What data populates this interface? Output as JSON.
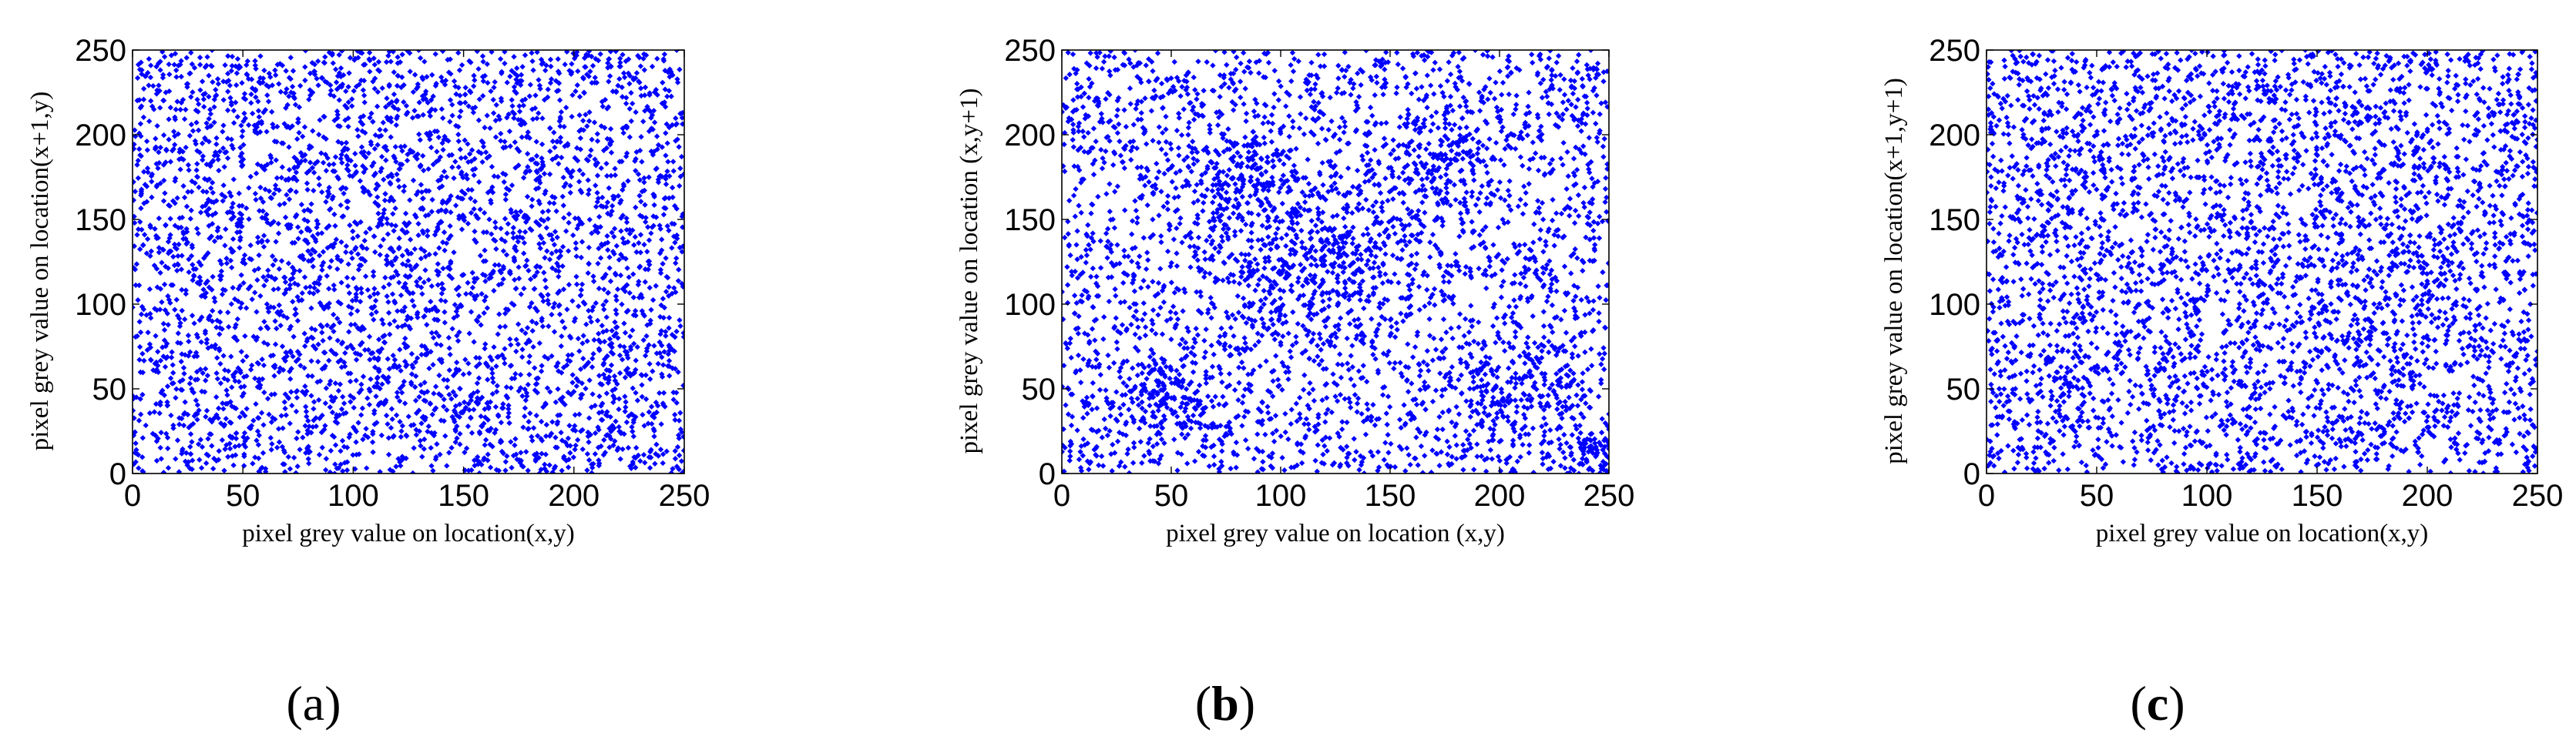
{
  "chart_data": [
    {
      "type": "scatter",
      "panel_label": "a",
      "panel_label_bold": false,
      "xlabel": "pixel grey value on location(x,y)",
      "ylabel": "pixel grey value on location(x+1,y)",
      "xlim": [
        0,
        250
      ],
      "ylim": [
        0,
        250
      ],
      "xticks": [
        "0",
        "50",
        "100",
        "150",
        "200",
        "250"
      ],
      "yticks": [
        "0",
        "50",
        "100",
        "150",
        "200",
        "250"
      ],
      "grid": false,
      "marker_color": "#0000ff",
      "point_count": 4000,
      "distribution": "uniform random over [0,250] x [0,250] (correlation near zero)",
      "seed": 11,
      "clusters": []
    },
    {
      "type": "scatter",
      "panel_label": "b",
      "panel_label_bold": true,
      "xlabel": "pixel grey value on location (x,y)",
      "ylabel": "pixel grey value on location (x,y+1)",
      "xlim": [
        0,
        250
      ],
      "ylim": [
        0,
        250
      ],
      "xticks": [
        "0",
        "50",
        "100",
        "150",
        "200",
        "250"
      ],
      "yticks": [
        "0",
        "50",
        "100",
        "150",
        "200",
        "250"
      ],
      "grid": false,
      "marker_color": "#0000ff",
      "point_count": 4000,
      "distribution": "mostly uniform random with denser clusters (correlation near zero)",
      "seed": 23,
      "clusters": [
        {
          "x": 115,
          "y": 125,
          "spread": 22,
          "n": 320
        },
        {
          "x": 50,
          "y": 45,
          "spread": 12,
          "n": 150
        },
        {
          "x": 80,
          "y": 175,
          "spread": 13,
          "n": 150
        },
        {
          "x": 175,
          "y": 185,
          "spread": 15,
          "n": 140
        },
        {
          "x": 210,
          "y": 50,
          "spread": 15,
          "n": 140
        },
        {
          "x": 240,
          "y": 12,
          "spread": 8,
          "n": 80
        }
      ]
    },
    {
      "type": "scatter",
      "panel_label": "c",
      "panel_label_bold": true,
      "xlabel": "pixel grey value on location(x,y)",
      "ylabel": "pixel grey value on location(x+1,y+1)",
      "xlim": [
        0,
        250
      ],
      "ylim": [
        0,
        250
      ],
      "xticks": [
        "0",
        "50",
        "100",
        "150",
        "200",
        "250"
      ],
      "yticks": [
        "0",
        "50",
        "100",
        "150",
        "200",
        "250"
      ],
      "grid": false,
      "marker_color": "#0000ff",
      "point_count": 4000,
      "distribution": "uniform random over [0,250] x [0,250] (correlation near zero)",
      "seed": 37,
      "clusters": []
    }
  ]
}
